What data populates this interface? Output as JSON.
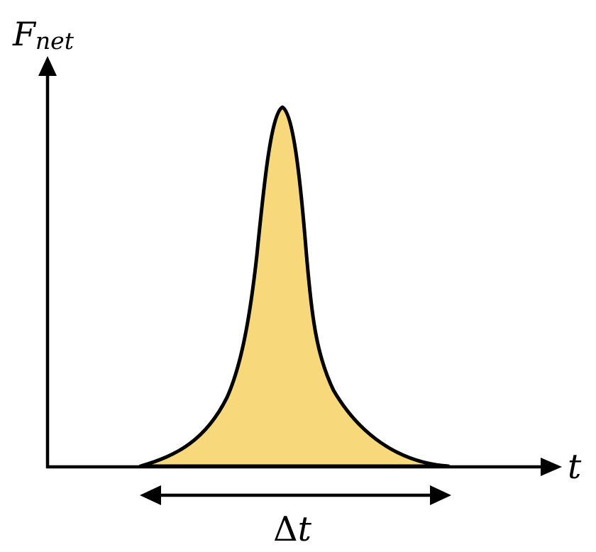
{
  "labels": {
    "y_axis_main": "F",
    "y_axis_sub": "net",
    "x_axis": "t",
    "interval_delta": "Δ",
    "interval_var": "t"
  },
  "colors": {
    "pulse_fill": "#F7D97C",
    "stroke": "#000000",
    "background": "#FFFFFF"
  }
}
